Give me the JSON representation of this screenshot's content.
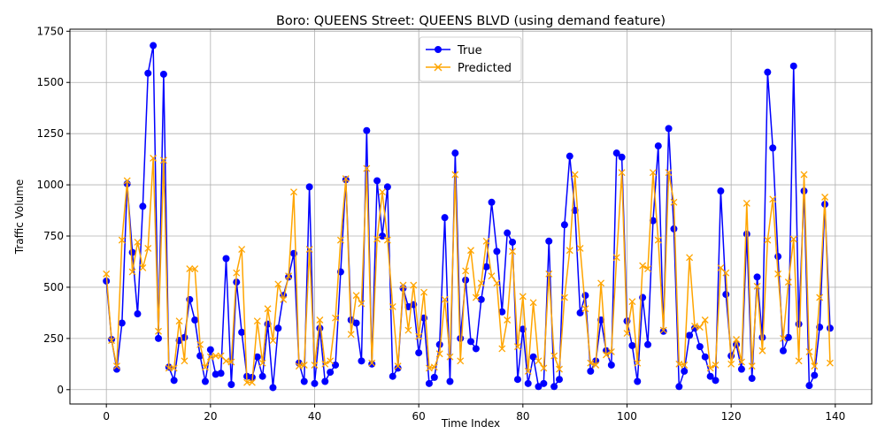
{
  "chart_data": {
    "type": "line",
    "title": "Boro: QUEENS Street: QUEENS BLVD (using demand feature)",
    "xlabel": "Time Index",
    "ylabel": "Traffic Volume",
    "xlim": [
      -7,
      147
    ],
    "ylim": [
      -70,
      1760
    ],
    "xticks": [
      0,
      20,
      40,
      60,
      80,
      100,
      120,
      140
    ],
    "yticks": [
      0,
      250,
      500,
      750,
      1000,
      1250,
      1500,
      1750
    ],
    "grid": true,
    "legend_position": "top-center",
    "series": [
      {
        "name": "True",
        "color": "#0000ff",
        "marker": "circle",
        "values": [
          530,
          245,
          100,
          325,
          1005,
          670,
          370,
          895,
          1545,
          1680,
          250,
          1540,
          110,
          45,
          240,
          255,
          440,
          340,
          165,
          40,
          195,
          75,
          80,
          640,
          25,
          525,
          280,
          65,
          60,
          160,
          65,
          320,
          10,
          300,
          460,
          550,
          665,
          130,
          40,
          990,
          30,
          300,
          40,
          85,
          120,
          575,
          1025,
          340,
          325,
          140,
          1265,
          125,
          1020,
          750,
          990,
          65,
          105,
          495,
          405,
          415,
          180,
          350,
          30,
          60,
          220,
          840,
          40,
          1155,
          250,
          535,
          235,
          200,
          440,
          600,
          915,
          675,
          380,
          765,
          720,
          50,
          295,
          30,
          160,
          15,
          30,
          725,
          15,
          50,
          805,
          1140,
          875,
          375,
          460,
          90,
          140,
          340,
          190,
          120,
          1155,
          1135,
          335,
          215,
          40,
          450,
          220,
          825,
          1190,
          285,
          1275,
          785,
          15,
          90,
          265,
          300,
          210,
          160,
          65,
          45,
          970,
          465,
          165,
          220,
          100,
          760,
          55,
          550,
          255,
          1550,
          1180,
          650,
          190,
          255,
          1580,
          320,
          970,
          20,
          70,
          305,
          905,
          300
        ]
      },
      {
        "name": "Predicted",
        "color": "#ffa500",
        "marker": "x",
        "values": [
          565,
          240,
          115,
          730,
          1020,
          575,
          720,
          595,
          690,
          1130,
          285,
          1120,
          105,
          105,
          335,
          140,
          590,
          590,
          220,
          110,
          160,
          165,
          165,
          140,
          135,
          570,
          685,
          35,
          35,
          335,
          130,
          395,
          240,
          515,
          440,
          555,
          965,
          115,
          120,
          685,
          120,
          340,
          125,
          140,
          350,
          730,
          1030,
          270,
          460,
          420,
          1080,
          130,
          735,
          965,
          730,
          405,
          115,
          510,
          290,
          510,
          260,
          475,
          105,
          110,
          175,
          440,
          160,
          1050,
          140,
          580,
          680,
          450,
          520,
          725,
          555,
          520,
          200,
          340,
          675,
          210,
          455,
          90,
          425,
          140,
          105,
          565,
          165,
          100,
          450,
          680,
          1050,
          690,
          395,
          130,
          120,
          520,
          170,
          185,
          645,
          1060,
          275,
          430,
          130,
          605,
          590,
          1060,
          730,
          290,
          1060,
          915,
          125,
          120,
          645,
          310,
          305,
          340,
          105,
          120,
          595,
          570,
          125,
          245,
          135,
          910,
          115,
          505,
          190,
          730,
          930,
          565,
          250,
          525,
          735,
          140,
          1050,
          185,
          115,
          450,
          940,
          130
        ]
      }
    ]
  }
}
